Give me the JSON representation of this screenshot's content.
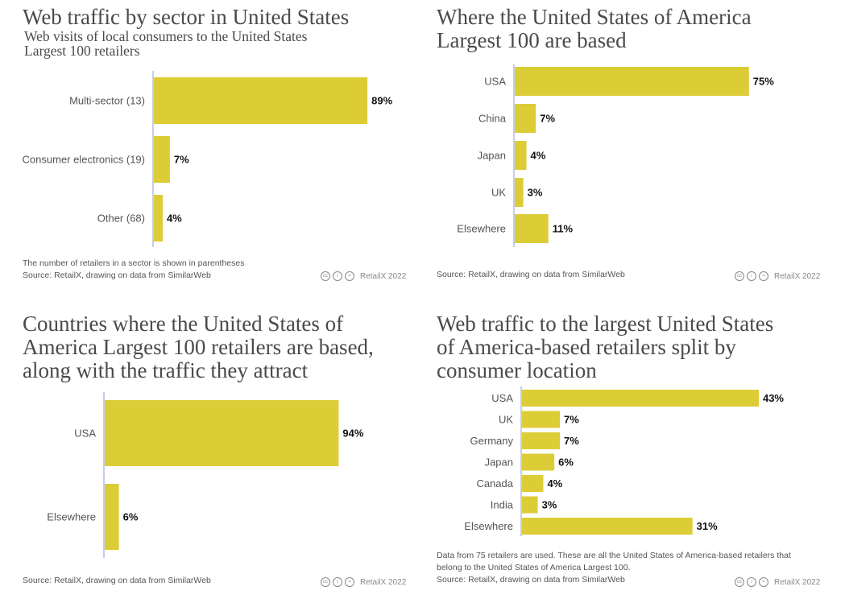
{
  "colors": {
    "bar": "#dccd37",
    "axis": "#c5cde8",
    "title": "#4a4a4a"
  },
  "chart_data": [
    {
      "type": "bar",
      "orientation": "horizontal",
      "title": "Web traffic by sector in United States",
      "subtitle": [
        "Web visits of local consumers to the United States",
        "Largest 100 retailers"
      ],
      "categories": [
        "Multi-sector (13)",
        "Consumer electronics (19)",
        "Other (68)"
      ],
      "values": [
        89,
        7,
        4
      ],
      "labels": [
        "89%",
        "7%",
        "4%"
      ],
      "unit": "%",
      "notes": [
        "The number of retailers in a sector is shown in parentheses",
        "Source: RetailX, drawing on data from SimilarWeb"
      ],
      "credit": "RetailX 2022"
    },
    {
      "type": "bar",
      "orientation": "horizontal",
      "title": [
        "Where the United States of America",
        "Largest 100 are based"
      ],
      "categories": [
        "USA",
        "China",
        "Japan",
        "UK",
        "Elsewhere"
      ],
      "values": [
        75,
        7,
        4,
        3,
        11
      ],
      "labels": [
        "75%",
        "7%",
        "4%",
        "3%",
        "11%"
      ],
      "unit": "%",
      "notes": [
        "Source: RetailX, drawing on data from SimilarWeb"
      ],
      "credit": "RetailX 2022"
    },
    {
      "type": "bar",
      "orientation": "horizontal",
      "title": [
        "Countries where the United States of",
        "America Largest 100 retailers are based,",
        "along with the traffic they attract"
      ],
      "categories": [
        "USA",
        "Elsewhere"
      ],
      "values": [
        94,
        6
      ],
      "labels": [
        "94%",
        "6%"
      ],
      "unit": "%",
      "notes": [
        "Source: RetailX, drawing on data from SimilarWeb"
      ],
      "credit": "RetailX 2022"
    },
    {
      "type": "bar",
      "orientation": "horizontal",
      "title": [
        "Web traffic to the largest United States",
        "of America-based retailers split by",
        "consumer location"
      ],
      "categories": [
        "USA",
        "UK",
        "Germany",
        "Japan",
        "Canada",
        "India",
        "Elsewhere"
      ],
      "values": [
        43,
        7,
        7,
        6,
        4,
        3,
        31
      ],
      "labels": [
        "43%",
        "7%",
        "7%",
        "6%",
        "4%",
        "3%",
        "31%"
      ],
      "unit": "%",
      "notes": [
        "Data from 75 retailers are used. These are all the United States of America-based retailers that",
        "belong to the United States of America Largest 100.",
        "Source: RetailX, drawing on data from SimilarWeb"
      ],
      "credit": "RetailX 2022"
    }
  ]
}
